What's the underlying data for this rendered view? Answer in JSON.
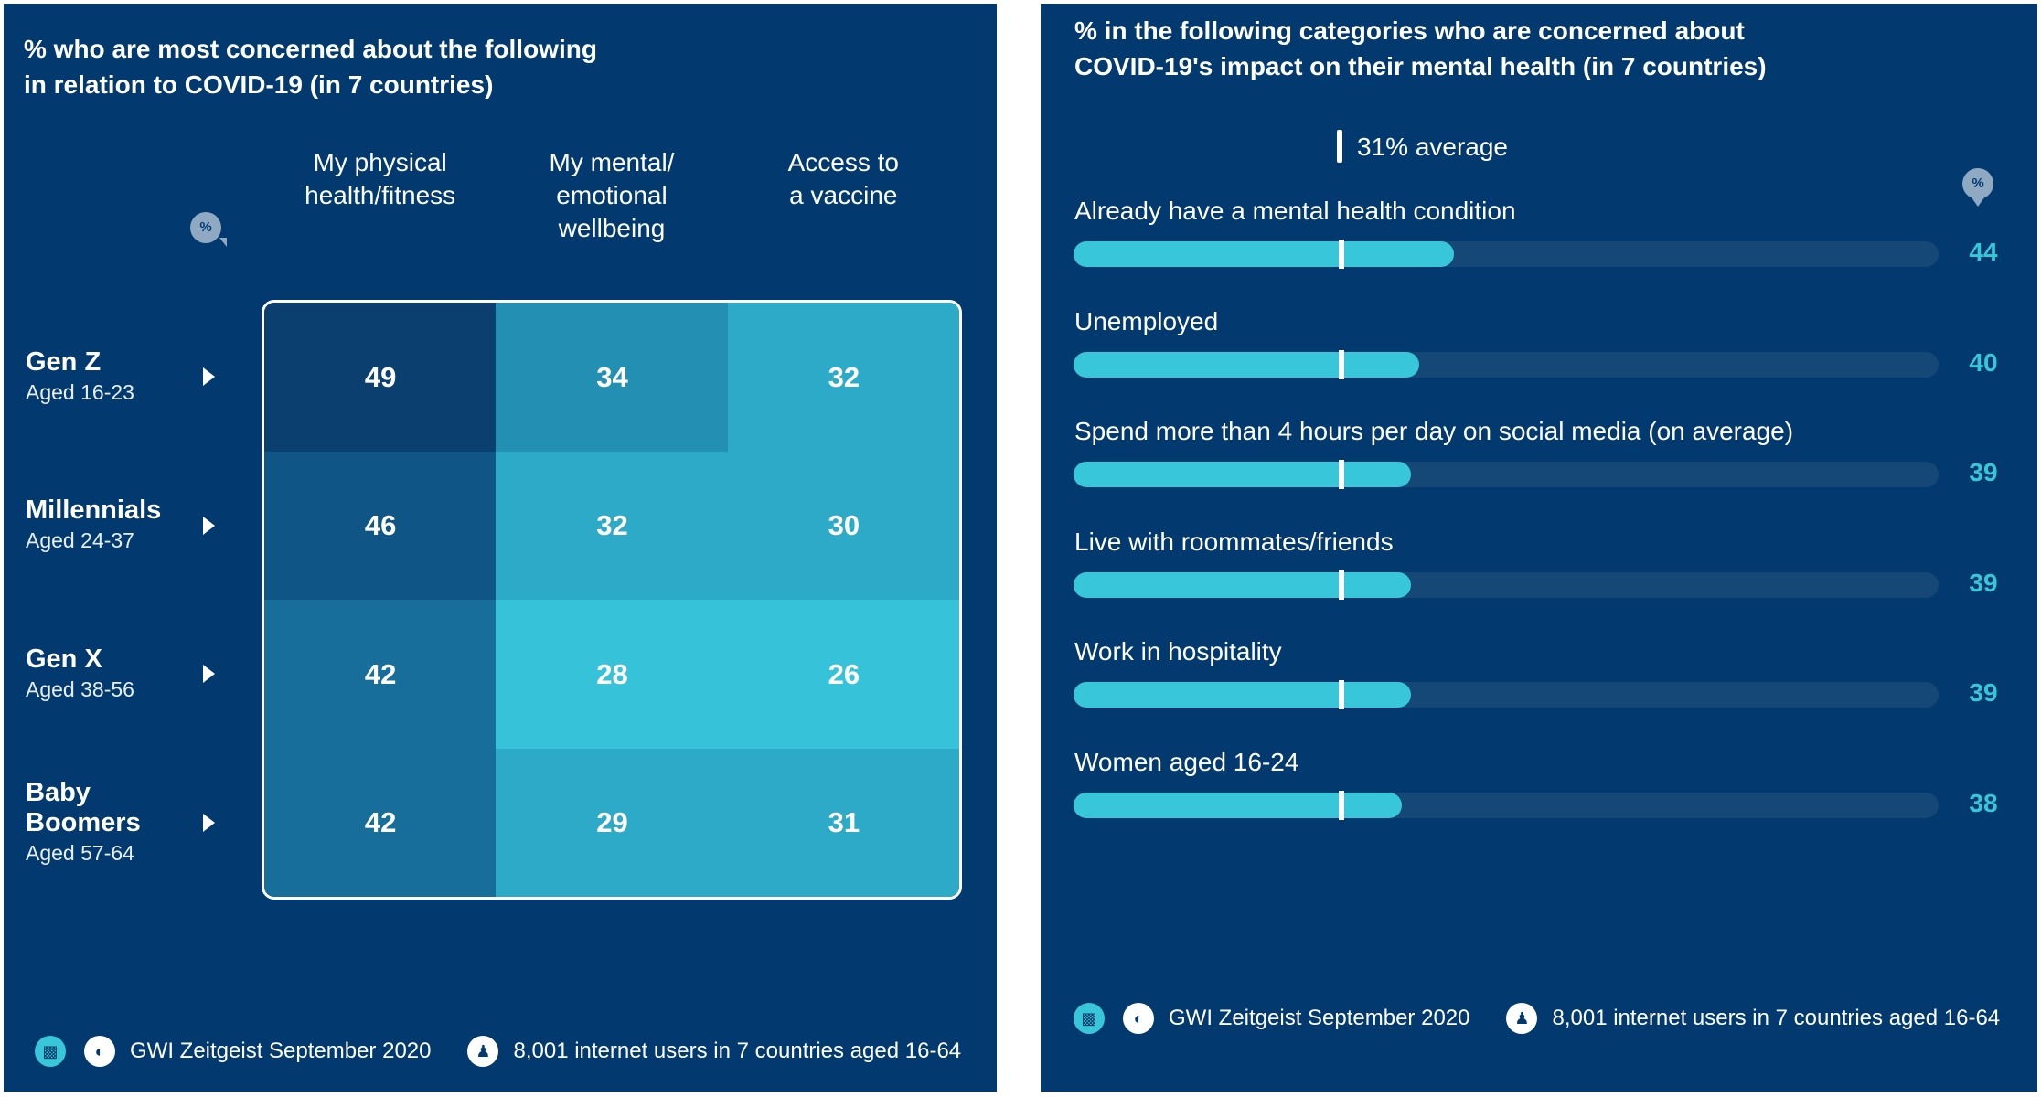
{
  "left_panel": {
    "title_line1": "% who are most concerned about the following",
    "title_line2": "in relation to COVID-19 (in 7 countries)",
    "pct_icon": "%",
    "footer": {
      "chart_icon": "chart-icon",
      "source": "GWI Zeitgeist September 2020",
      "sample": "8,001 internet users in 7 countries aged 16-64"
    }
  },
  "right_panel": {
    "title_line1": "% in the following categories who are concerned about",
    "title_line2": "COVID-19's impact on their mental health (in 7 countries)",
    "average_label": "31% average",
    "pct_icon": "%",
    "footer": {
      "chart_icon": "chart-icon",
      "source": "GWI Zeitgeist September 2020",
      "sample": "8,001 internet users in 7 countries aged 16-64"
    }
  },
  "colors": {
    "background": "#023a6f",
    "accent": "#38c7da",
    "track": "#164877",
    "heat_scale": [
      "#0b3f70",
      "#0f5586",
      "#176e9b",
      "#238fb2",
      "#2eaac9",
      "#36c3da"
    ]
  },
  "chart_data": [
    {
      "type": "heatmap",
      "title": "% who are most concerned about the following in relation to COVID-19 (in 7 countries)",
      "columns": [
        [
          "My physical",
          "health/fitness"
        ],
        [
          "My mental/",
          "emotional",
          "wellbeing"
        ],
        [
          "Access to",
          "a vaccine"
        ]
      ],
      "rows": [
        {
          "name": [
            "Gen Z"
          ],
          "sub": "Aged 16-23"
        },
        {
          "name": [
            "Millennials"
          ],
          "sub": "Aged 24-37"
        },
        {
          "name": [
            "Gen X"
          ],
          "sub": "Aged 38-56"
        },
        {
          "name": [
            "Baby",
            "Boomers"
          ],
          "sub": "Aged 57-64"
        }
      ],
      "values": [
        [
          49,
          34,
          32
        ],
        [
          46,
          32,
          30
        ],
        [
          42,
          28,
          26
        ],
        [
          42,
          29,
          31
        ]
      ]
    },
    {
      "type": "bar",
      "orientation": "horizontal",
      "title": "% in the following categories who are concerned about COVID-19's impact on their mental health (in 7 countries)",
      "average": 31,
      "xlim": [
        0,
        100
      ],
      "categories": [
        "Already have a mental health condition",
        "Unemployed",
        "Spend more than 4 hours per day on social media (on average)",
        "Live with roommates/friends",
        "Work in hospitality",
        "Women aged 16-24"
      ],
      "values": [
        44,
        40,
        39,
        39,
        39,
        38
      ]
    }
  ]
}
